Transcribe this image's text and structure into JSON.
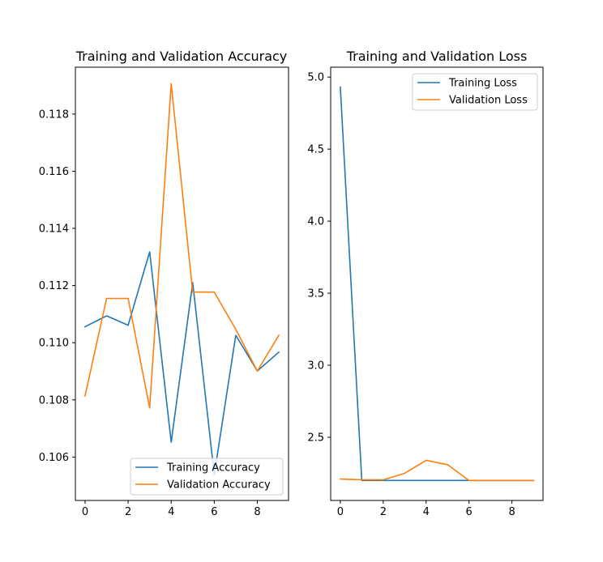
{
  "chart_data": [
    {
      "type": "line",
      "title": "Training and Validation Accuracy",
      "x": [
        0,
        1,
        2,
        3,
        4,
        5,
        6,
        7,
        8,
        9
      ],
      "xticks": [
        0,
        2,
        4,
        6,
        8
      ],
      "xtick_labels": [
        "0",
        "2",
        "4",
        "6",
        "8"
      ],
      "yticks": [
        0.106,
        0.108,
        0.11,
        0.112,
        0.114,
        0.116,
        0.118
      ],
      "ytick_labels": [
        "0.106",
        "0.108",
        "0.110",
        "0.112",
        "0.114",
        "0.116",
        "0.118"
      ],
      "xlim": [
        -0.45,
        9.45
      ],
      "ylim": [
        0.10448,
        0.11964
      ],
      "legend_position": "lower right",
      "grid": false,
      "series": [
        {
          "name": "Training Accuracy",
          "color": "#1f77b4",
          "values": [
            0.11056,
            0.11094,
            0.11061,
            0.11318,
            0.10652,
            0.1121,
            0.10538,
            0.11026,
            0.10901,
            0.10967
          ]
        },
        {
          "name": "Validation Accuracy",
          "color": "#ff7f0e",
          "values": [
            0.10814,
            0.11155,
            0.11155,
            0.10772,
            0.11906,
            0.11177,
            0.11177,
            0.11047,
            0.10901,
            0.11026
          ]
        }
      ]
    },
    {
      "type": "line",
      "title": "Training and Validation Loss",
      "x": [
        0,
        1,
        2,
        3,
        4,
        5,
        6,
        7,
        8,
        9
      ],
      "xticks": [
        0,
        2,
        4,
        6,
        8
      ],
      "xtick_labels": [
        "0",
        "2",
        "4",
        "6",
        "8"
      ],
      "yticks": [
        2.5,
        3.0,
        3.5,
        4.0,
        4.5,
        5.0
      ],
      "ytick_labels": [
        "2.5",
        "3.0",
        "3.5",
        "4.0",
        "4.5",
        "5.0"
      ],
      "xlim": [
        -0.45,
        9.45
      ],
      "ylim": [
        2.0615,
        5.0685
      ],
      "legend_position": "upper right",
      "grid": false,
      "series": [
        {
          "name": "Training Loss",
          "color": "#1f77b4",
          "values": [
            4.93,
            2.2,
            2.2,
            2.2,
            2.2,
            2.2,
            2.2,
            2.2,
            2.2,
            2.2
          ]
        },
        {
          "name": "Validation Loss",
          "color": "#ff7f0e",
          "values": [
            2.21,
            2.205,
            2.205,
            2.25,
            2.34,
            2.31,
            2.2,
            2.2,
            2.2,
            2.2
          ]
        }
      ]
    }
  ]
}
